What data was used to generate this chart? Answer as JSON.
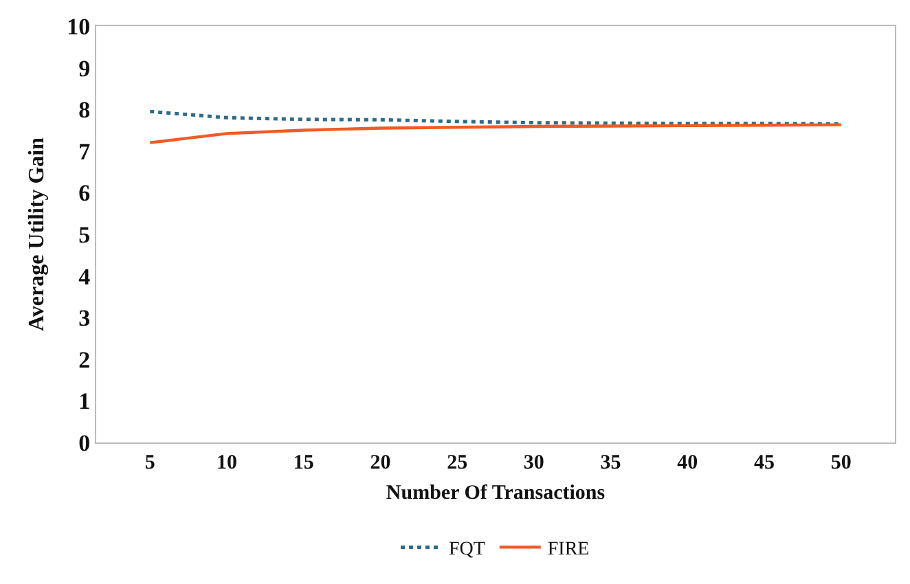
{
  "chart_data": {
    "type": "line",
    "xlabel": "Number Of Transactions",
    "ylabel": "Average Utility Gain",
    "categories": [
      "5",
      "10",
      "15",
      "20",
      "25",
      "30",
      "35",
      "40",
      "45",
      "50"
    ],
    "series": [
      {
        "name": "FQT",
        "color": "#2e6b8a",
        "line_style": "dotted",
        "values": [
          7.95,
          7.8,
          7.76,
          7.75,
          7.71,
          7.68,
          7.67,
          7.66,
          7.66,
          7.65
        ]
      },
      {
        "name": "FIRE",
        "color": "#f05a24",
        "line_style": "solid",
        "values": [
          7.2,
          7.42,
          7.5,
          7.55,
          7.57,
          7.59,
          7.6,
          7.61,
          7.62,
          7.63
        ]
      }
    ],
    "ylim": [
      0,
      10
    ],
    "yticks": [
      0,
      1,
      2,
      3,
      4,
      5,
      6,
      7,
      8,
      9,
      10
    ],
    "legend": "bottom",
    "marker": "none"
  }
}
